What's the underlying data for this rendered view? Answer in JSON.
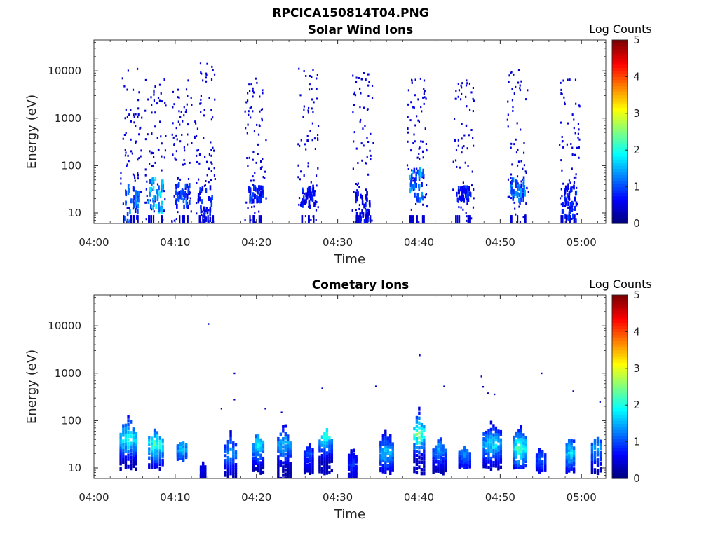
{
  "figure_title": "RPCICA150814T04.PNG",
  "chart_data": [
    {
      "type": "heatmap",
      "title": "Solar Wind Ions",
      "xlabel": "Time",
      "ylabel": "Energy (eV)",
      "x_ticks": [
        "04:00",
        "04:10",
        "04:20",
        "04:30",
        "04:40",
        "04:50",
        "05:00"
      ],
      "x_tick_minutes": [
        0,
        10,
        20,
        30,
        40,
        50,
        60
      ],
      "xlim_minutes": [
        0,
        63
      ],
      "y_ticks": [
        "10",
        "100",
        "1000",
        "10000"
      ],
      "y_tick_values": [
        10,
        100,
        1000,
        10000
      ],
      "ylim": [
        6,
        45000
      ],
      "y_scale": "log",
      "colorbar": {
        "label": "Log Counts",
        "ticks": [
          "0",
          "1",
          "2",
          "3",
          "4",
          "5"
        ],
        "range": [
          0,
          5
        ],
        "colormap": "jet"
      },
      "bursts": [
        {
          "t": 4.5,
          "emax": 12000,
          "hot": [
            5,
            45
          ],
          "level": 1.4
        },
        {
          "t": 7.5,
          "emax": 9000,
          "hot": [
            12,
            60
          ],
          "level": 1.9
        },
        {
          "t": 10.8,
          "emax": 9000,
          "hot": [
            15,
            45
          ],
          "level": 1.2
        },
        {
          "t": 13.6,
          "emax": 20000,
          "hot": [
            6,
            40
          ],
          "level": 1.0
        },
        {
          "t": 19.8,
          "emax": 8000,
          "hot": [
            20,
            40
          ],
          "level": 1.1
        },
        {
          "t": 26.3,
          "emax": 13000,
          "hot": [
            15,
            40
          ],
          "level": 0.9
        },
        {
          "t": 33.0,
          "emax": 10000,
          "hot": [
            7,
            30
          ],
          "level": 0.8
        },
        {
          "t": 39.6,
          "emax": 8000,
          "hot": [
            20,
            100
          ],
          "level": 1.6
        },
        {
          "t": 45.4,
          "emax": 7000,
          "hot": [
            20,
            40
          ],
          "level": 1.0
        },
        {
          "t": 52.1,
          "emax": 13000,
          "hot": [
            20,
            60
          ],
          "level": 1.5
        },
        {
          "t": 58.4,
          "emax": 7000,
          "hot": [
            7,
            40
          ],
          "level": 1.0
        }
      ]
    },
    {
      "type": "heatmap",
      "title": "Cometary Ions",
      "xlabel": "Time",
      "ylabel": "Energy (eV)",
      "x_ticks": [
        "04:00",
        "04:10",
        "04:20",
        "04:30",
        "04:40",
        "04:50",
        "05:00"
      ],
      "x_tick_minutes": [
        0,
        10,
        20,
        30,
        40,
        50,
        60
      ],
      "xlim_minutes": [
        0,
        63
      ],
      "y_ticks": [
        "10",
        "100",
        "1000",
        "10000"
      ],
      "y_tick_values": [
        10,
        100,
        1000,
        10000
      ],
      "ylim": [
        6,
        45000
      ],
      "y_scale": "log",
      "colorbar": {
        "label": "Log Counts",
        "ticks": [
          "0",
          "1",
          "2",
          "3",
          "4",
          "5"
        ],
        "range": [
          0,
          5
        ],
        "colormap": "jet"
      },
      "bursts": [
        {
          "t": 4.2,
          "emin": 10,
          "emax": 160,
          "peak": 40,
          "level": 2.4,
          "w": 2.2
        },
        {
          "t": 7.6,
          "emin": 10,
          "emax": 90,
          "peak": 30,
          "level": 2.5,
          "w": 2.0
        },
        {
          "t": 10.8,
          "emin": 15,
          "emax": 40,
          "peak": 25,
          "level": 1.8,
          "w": 1.4
        },
        {
          "t": 13.4,
          "emin": 5,
          "emax": 15,
          "peak": 10,
          "level": 0.6,
          "w": 0.8
        },
        {
          "t": 16.8,
          "emin": 6,
          "emax": 70,
          "peak": 20,
          "level": 1.6,
          "w": 1.6
        },
        {
          "t": 20.2,
          "emin": 8,
          "emax": 70,
          "peak": 30,
          "level": 2.1,
          "w": 1.5
        },
        {
          "t": 23.4,
          "emin": 6,
          "emax": 110,
          "peak": 30,
          "level": 1.8,
          "w": 1.8
        },
        {
          "t": 26.4,
          "emin": 8,
          "emax": 40,
          "peak": 20,
          "level": 1.1,
          "w": 1.3
        },
        {
          "t": 28.5,
          "emin": 8,
          "emax": 100,
          "peak": 45,
          "level": 2.3,
          "w": 1.8
        },
        {
          "t": 31.8,
          "emin": 6,
          "emax": 30,
          "peak": 12,
          "level": 1.0,
          "w": 1.2
        },
        {
          "t": 36.0,
          "emin": 8,
          "emax": 80,
          "peak": 20,
          "level": 1.8,
          "w": 1.8
        },
        {
          "t": 40.0,
          "emin": 8,
          "emax": 220,
          "peak": 50,
          "level": 2.8,
          "w": 1.5
        },
        {
          "t": 42.5,
          "emin": 8,
          "emax": 50,
          "peak": 25,
          "level": 1.6,
          "w": 1.8
        },
        {
          "t": 45.6,
          "emin": 10,
          "emax": 30,
          "peak": 20,
          "level": 1.4,
          "w": 1.6
        },
        {
          "t": 49.0,
          "emin": 10,
          "emax": 150,
          "peak": 30,
          "level": 2.0,
          "w": 2.4
        },
        {
          "t": 52.4,
          "emin": 10,
          "emax": 100,
          "peak": 25,
          "level": 2.6,
          "w": 1.8
        },
        {
          "t": 55.0,
          "emin": 8,
          "emax": 30,
          "peak": 15,
          "level": 1.2,
          "w": 1.4
        },
        {
          "t": 58.6,
          "emin": 8,
          "emax": 70,
          "peak": 20,
          "level": 2.0,
          "w": 1.2
        },
        {
          "t": 61.8,
          "emin": 8,
          "emax": 70,
          "peak": 25,
          "level": 1.8,
          "w": 1.4
        }
      ],
      "isolated_points": [
        {
          "t": 14.0,
          "e": 11000
        },
        {
          "t": 17.2,
          "e": 1000
        },
        {
          "t": 17.2,
          "e": 280
        },
        {
          "t": 15.6,
          "e": 180
        },
        {
          "t": 21.0,
          "e": 180
        },
        {
          "t": 23.0,
          "e": 150
        },
        {
          "t": 28.0,
          "e": 480
        },
        {
          "t": 34.6,
          "e": 530
        },
        {
          "t": 40.0,
          "e": 2400
        },
        {
          "t": 43.0,
          "e": 530
        },
        {
          "t": 47.6,
          "e": 860
        },
        {
          "t": 47.8,
          "e": 520
        },
        {
          "t": 48.4,
          "e": 380
        },
        {
          "t": 49.2,
          "e": 360
        },
        {
          "t": 55.0,
          "e": 1000
        },
        {
          "t": 58.9,
          "e": 420
        },
        {
          "t": 62.2,
          "e": 250
        }
      ]
    }
  ]
}
